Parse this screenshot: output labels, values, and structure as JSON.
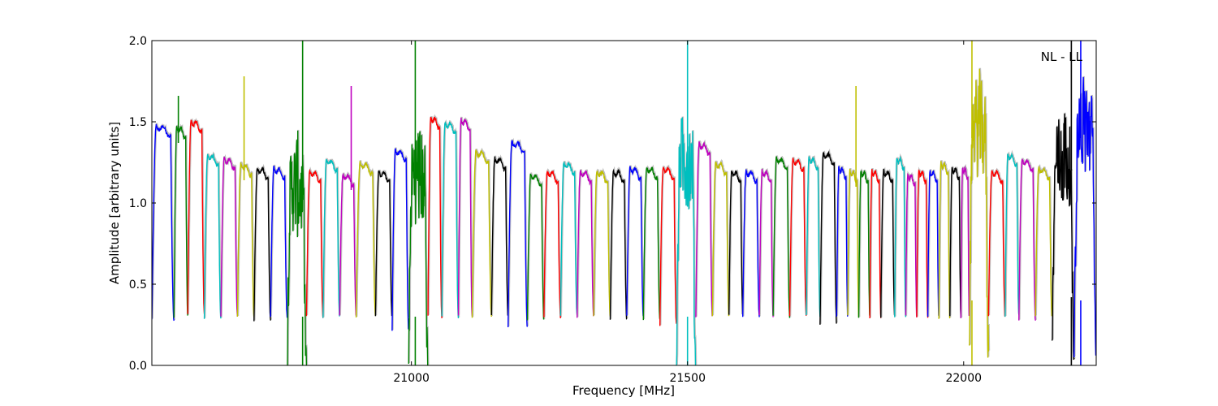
{
  "chart_data": {
    "type": "line",
    "title": "",
    "xlabel": "Frequency [MHz]",
    "ylabel": "Amplitude [arbitrary units]",
    "xlim": [
      20530,
      22240
    ],
    "ylim": [
      0.0,
      2.0
    ],
    "x_ticks": [
      21000,
      21500,
      22000
    ],
    "x_tick_labels": [
      "21000",
      "21500",
      "22000"
    ],
    "y_ticks": [
      0.0,
      0.5,
      1.0,
      1.5,
      2.0
    ],
    "y_tick_labels": [
      "0.0",
      "0.5",
      "1.0",
      "1.5",
      "2.0"
    ],
    "annotation": "NL - LL",
    "grid": false,
    "shadow_color": "#bfbfbf",
    "colors": [
      "#0000ff",
      "#008000",
      "#ff0000",
      "#00bfbf",
      "#bf00bf",
      "#bfbf00",
      "#000000"
    ],
    "channels": [
      {
        "x0": 20530,
        "x1": 20570,
        "peak": 1.48,
        "edge": 0.28,
        "color": "#0000ff"
      },
      {
        "x0": 20570,
        "x1": 20595,
        "peak": 1.47,
        "edge": 0.3,
        "color": "#008000",
        "spike": [
          20578,
          1.66
        ]
      },
      {
        "x0": 20595,
        "x1": 20625,
        "peak": 1.51,
        "edge": 0.32,
        "color": "#ff0000"
      },
      {
        "x0": 20625,
        "x1": 20655,
        "peak": 1.3,
        "edge": 0.28,
        "color": "#00bfbf"
      },
      {
        "x0": 20655,
        "x1": 20685,
        "peak": 1.28,
        "edge": 0.3,
        "color": "#bf00bf"
      },
      {
        "x0": 20685,
        "x1": 20715,
        "peak": 1.24,
        "edge": 0.3,
        "color": "#bfbf00",
        "spike": [
          20697,
          1.78
        ]
      },
      {
        "x0": 20715,
        "x1": 20745,
        "peak": 1.22,
        "edge": 0.28,
        "color": "#000000"
      },
      {
        "x0": 20745,
        "x1": 20775,
        "peak": 1.22,
        "edge": 0.3,
        "color": "#0000ff"
      },
      {
        "x0": 20775,
        "x1": 20810,
        "peak": 1.12,
        "edge": 0.0,
        "color": "#008000",
        "noisy": true,
        "spike": [
          20803,
          2.0
        ]
      },
      {
        "x0": 20810,
        "x1": 20840,
        "peak": 1.2,
        "edge": 0.3,
        "color": "#ff0000"
      },
      {
        "x0": 20840,
        "x1": 20870,
        "peak": 1.27,
        "edge": 0.3,
        "color": "#00bfbf"
      },
      {
        "x0": 20870,
        "x1": 20900,
        "peak": 1.18,
        "edge": 0.3,
        "color": "#bf00bf",
        "spike": [
          20891,
          1.72
        ]
      },
      {
        "x0": 20900,
        "x1": 20935,
        "peak": 1.25,
        "edge": 0.3,
        "color": "#bfbf00"
      },
      {
        "x0": 20935,
        "x1": 20965,
        "peak": 1.2,
        "edge": 0.3,
        "color": "#000000"
      },
      {
        "x0": 20965,
        "x1": 20995,
        "peak": 1.33,
        "edge": 0.22,
        "color": "#0000ff"
      },
      {
        "x0": 20995,
        "x1": 21030,
        "peak": 1.2,
        "edge": 0.0,
        "color": "#008000",
        "noisy": true,
        "spike": [
          21007,
          2.0
        ]
      },
      {
        "x0": 21030,
        "x1": 21055,
        "peak": 1.53,
        "edge": 0.3,
        "color": "#ff0000"
      },
      {
        "x0": 21055,
        "x1": 21085,
        "peak": 1.5,
        "edge": 0.3,
        "color": "#00bfbf"
      },
      {
        "x0": 21085,
        "x1": 21110,
        "peak": 1.52,
        "edge": 0.3,
        "color": "#bf00bf"
      },
      {
        "x0": 21110,
        "x1": 21145,
        "peak": 1.32,
        "edge": 0.3,
        "color": "#bfbf00"
      },
      {
        "x0": 21145,
        "x1": 21175,
        "peak": 1.28,
        "edge": 0.3,
        "color": "#000000"
      },
      {
        "x0": 21175,
        "x1": 21210,
        "peak": 1.38,
        "edge": 0.23,
        "color": "#0000ff"
      },
      {
        "x0": 21210,
        "x1": 21240,
        "peak": 1.18,
        "edge": 0.28,
        "color": "#008000"
      },
      {
        "x0": 21240,
        "x1": 21270,
        "peak": 1.2,
        "edge": 0.3,
        "color": "#ff0000"
      },
      {
        "x0": 21270,
        "x1": 21300,
        "peak": 1.25,
        "edge": 0.3,
        "color": "#00bfbf"
      },
      {
        "x0": 21300,
        "x1": 21330,
        "peak": 1.2,
        "edge": 0.3,
        "color": "#bf00bf"
      },
      {
        "x0": 21330,
        "x1": 21360,
        "peak": 1.2,
        "edge": 0.3,
        "color": "#bfbf00"
      },
      {
        "x0": 21360,
        "x1": 21390,
        "peak": 1.2,
        "edge": 0.28,
        "color": "#000000"
      },
      {
        "x0": 21390,
        "x1": 21420,
        "peak": 1.22,
        "edge": 0.3,
        "color": "#0000ff"
      },
      {
        "x0": 21420,
        "x1": 21450,
        "peak": 1.22,
        "edge": 0.28,
        "color": "#008000"
      },
      {
        "x0": 21450,
        "x1": 21480,
        "peak": 1.22,
        "edge": 0.25,
        "color": "#ff0000"
      },
      {
        "x0": 21480,
        "x1": 21515,
        "peak": 1.3,
        "edge": 0.0,
        "color": "#00bfbf",
        "noisy": true,
        "spike": [
          21500,
          2.0
        ]
      },
      {
        "x0": 21515,
        "x1": 21545,
        "peak": 1.37,
        "edge": 0.3,
        "color": "#bf00bf"
      },
      {
        "x0": 21545,
        "x1": 21575,
        "peak": 1.25,
        "edge": 0.3,
        "color": "#bfbf00"
      },
      {
        "x0": 21575,
        "x1": 21600,
        "peak": 1.2,
        "edge": 0.32,
        "color": "#000000"
      },
      {
        "x0": 21600,
        "x1": 21630,
        "peak": 1.2,
        "edge": 0.3,
        "color": "#0000ff"
      },
      {
        "x0": 21630,
        "x1": 21655,
        "peak": 1.2,
        "edge": 0.3,
        "color": "#bf00bf"
      },
      {
        "x0": 21655,
        "x1": 21685,
        "peak": 1.28,
        "edge": 0.3,
        "color": "#008000"
      },
      {
        "x0": 21685,
        "x1": 21715,
        "peak": 1.27,
        "edge": 0.3,
        "color": "#ff0000"
      },
      {
        "x0": 21715,
        "x1": 21740,
        "peak": 1.28,
        "edge": 0.3,
        "color": "#00bfbf"
      },
      {
        "x0": 21740,
        "x1": 21770,
        "peak": 1.31,
        "edge": 0.25,
        "color": "#000000"
      },
      {
        "x0": 21770,
        "x1": 21790,
        "peak": 1.22,
        "edge": 0.3,
        "color": "#0000ff"
      },
      {
        "x0": 21790,
        "x1": 21810,
        "peak": 1.2,
        "edge": 0.3,
        "color": "#bfbf00",
        "spike": [
          21805,
          1.72
        ]
      },
      {
        "x0": 21810,
        "x1": 21830,
        "peak": 1.2,
        "edge": 0.3,
        "color": "#008000"
      },
      {
        "x0": 21830,
        "x1": 21850,
        "peak": 1.2,
        "edge": 0.3,
        "color": "#ff0000"
      },
      {
        "x0": 21850,
        "x1": 21875,
        "peak": 1.2,
        "edge": 0.3,
        "color": "#000000"
      },
      {
        "x0": 21875,
        "x1": 21895,
        "peak": 1.28,
        "edge": 0.3,
        "color": "#00bfbf"
      },
      {
        "x0": 21895,
        "x1": 21915,
        "peak": 1.18,
        "edge": 0.3,
        "color": "#bf00bf"
      },
      {
        "x0": 21915,
        "x1": 21935,
        "peak": 1.2,
        "edge": 0.3,
        "color": "#ff0000"
      },
      {
        "x0": 21935,
        "x1": 21955,
        "peak": 1.2,
        "edge": 0.3,
        "color": "#0000ff"
      },
      {
        "x0": 21955,
        "x1": 21975,
        "peak": 1.25,
        "edge": 0.28,
        "color": "#bfbf00"
      },
      {
        "x0": 21975,
        "x1": 21995,
        "peak": 1.22,
        "edge": 0.3,
        "color": "#000000"
      },
      {
        "x0": 21995,
        "x1": 22010,
        "peak": 1.22,
        "edge": 0.3,
        "color": "#bf00bf"
      },
      {
        "x0": 22010,
        "x1": 22045,
        "peak": 1.5,
        "edge": 0.1,
        "color": "#bfbf00",
        "noisy": true,
        "spike": [
          22015,
          2.0
        ]
      },
      {
        "x0": 22045,
        "x1": 22075,
        "peak": 1.2,
        "edge": 0.3,
        "color": "#ff0000"
      },
      {
        "x0": 22075,
        "x1": 22100,
        "peak": 1.3,
        "edge": 0.3,
        "color": "#00bfbf"
      },
      {
        "x0": 22100,
        "x1": 22130,
        "peak": 1.27,
        "edge": 0.28,
        "color": "#bf00bf"
      },
      {
        "x0": 22130,
        "x1": 22160,
        "peak": 1.22,
        "edge": 0.3,
        "color": "#bfbf00"
      },
      {
        "x0": 22160,
        "x1": 22200,
        "peak": 1.3,
        "edge": 0.12,
        "color": "#000000",
        "noisy": true,
        "spike": [
          22195,
          2.0
        ]
      },
      {
        "x0": 22200,
        "x1": 22240,
        "peak": 1.5,
        "edge": 0.1,
        "color": "#0000ff",
        "noisy": true,
        "spike": [
          22212,
          2.0
        ]
      }
    ]
  }
}
